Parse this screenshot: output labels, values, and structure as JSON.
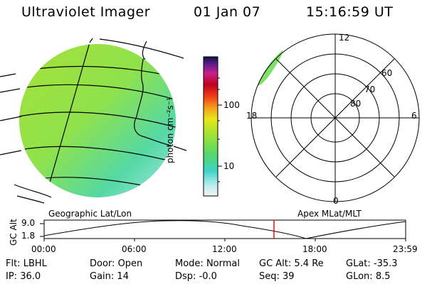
{
  "header": {
    "title": "Ultraviolet Imager",
    "date": "01 Jan 07",
    "time": "15:16:59 UT"
  },
  "colorbar": {
    "unit_label": "photon cm⁻²s⁻¹",
    "ticks": [
      "100",
      "10"
    ]
  },
  "polar_plot": {
    "mlt_labels": {
      "top": "12",
      "left": "18",
      "right": "6",
      "bottom": "0"
    },
    "lat_labels": [
      "60",
      "70",
      "80"
    ]
  },
  "projection_labels": {
    "left": "Geographic Lat/Lon",
    "right": "Apex MLat/MLT"
  },
  "altitude_plot": {
    "axis_label": "GC Alt",
    "y_ticks": [
      "9.0",
      "1.8"
    ],
    "x_ticks": [
      "00:00",
      "06:00",
      "12:00",
      "18:00",
      "23:59"
    ],
    "marker_color": "#d40000",
    "marker_time": "15:16:59"
  },
  "status": {
    "row1": [
      {
        "label": "Flt:",
        "value": "LBHL"
      },
      {
        "label": "Door:",
        "value": "Open"
      },
      {
        "label": "Mode:",
        "value": "Normal"
      },
      {
        "label": "GC Alt:",
        "value": "5.4 Re"
      },
      {
        "label": "GLat:",
        "value": "-35.3"
      }
    ],
    "row2": [
      {
        "label": "IP:",
        "value": "36.0"
      },
      {
        "label": "Gain:",
        "value": "14"
      },
      {
        "label": "Dsp:",
        "value": "-0.0"
      },
      {
        "label": "Seq:",
        "value": "39"
      },
      {
        "label": "GLon:",
        "value": "8.5"
      }
    ]
  }
}
